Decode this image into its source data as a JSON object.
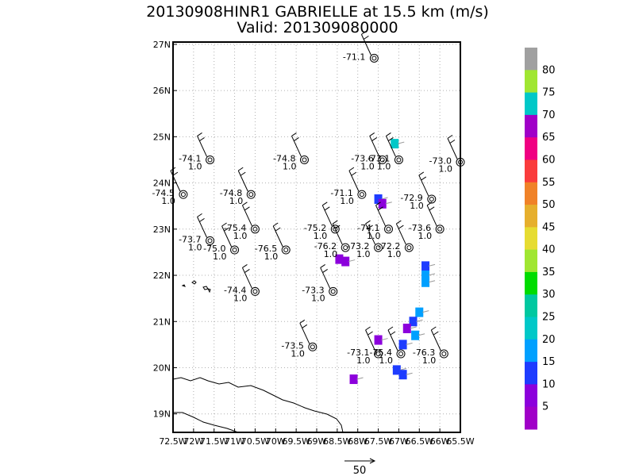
{
  "title": {
    "line1": "20130908HINR1 GABRIELLE at 15.5 km (m/s)",
    "line2": "Valid: 201309080000"
  },
  "axes": {
    "lat_labels": [
      "27N",
      "26N",
      "25N",
      "24N",
      "23N",
      "22N",
      "21N",
      "20N",
      "19N"
    ],
    "lat_values": [
      27,
      26,
      25,
      24,
      23,
      22,
      21,
      20,
      19
    ],
    "lon_labels": [
      "72.5W",
      "72W",
      "71.5W",
      "71W",
      "70.5W",
      "70W",
      "69.5W",
      "69W",
      "68.5W",
      "68W",
      "67.5W",
      "67W",
      "66.5W",
      "66W",
      "65.5W"
    ],
    "lon_values": [
      -72.5,
      -72,
      -71.5,
      -71,
      -70.5,
      -70,
      -69.5,
      -69,
      -68.5,
      -68,
      -67.5,
      -67,
      -66.5,
      -66,
      -65.5
    ],
    "lon_range": [
      -72.5,
      -65.5
    ],
    "lat_range": [
      18.6,
      27.05
    ],
    "grid": true
  },
  "stations": [
    {
      "lon": -67.6,
      "lat": 26.7,
      "temp": "-71.1",
      "val": ""
    },
    {
      "lon": -71.6,
      "lat": 24.5,
      "temp": "-74.1",
      "val": "1.0"
    },
    {
      "lon": -69.3,
      "lat": 24.5,
      "temp": "-74.8",
      "val": "1.0"
    },
    {
      "lon": -67.4,
      "lat": 24.5,
      "temp": "-73.6",
      "val": "1.0"
    },
    {
      "lon": -67.0,
      "lat": 24.5,
      "temp": "-73.1",
      "val": "1.0"
    },
    {
      "lon": -65.5,
      "lat": 24.45,
      "temp": "-73.0",
      "val": "1.0"
    },
    {
      "lon": -72.25,
      "lat": 23.75,
      "temp": "-74.5",
      "val": "1.0"
    },
    {
      "lon": -70.6,
      "lat": 23.75,
      "temp": "-74.8",
      "val": "1.0"
    },
    {
      "lon": -67.9,
      "lat": 23.75,
      "temp": "-71.1",
      "val": "1.0"
    },
    {
      "lon": -66.2,
      "lat": 23.65,
      "temp": "-72.9",
      "val": "1.0"
    },
    {
      "lon": -70.5,
      "lat": 23.0,
      "temp": "-75.4",
      "val": "1.0"
    },
    {
      "lon": -68.55,
      "lat": 23.0,
      "temp": "-75.2",
      "val": "1.0"
    },
    {
      "lon": -67.25,
      "lat": 23.0,
      "temp": "-74.1",
      "val": "1.0"
    },
    {
      "lon": -66.0,
      "lat": 23.0,
      "temp": "-73.6",
      "val": "1.0"
    },
    {
      "lon": -71.6,
      "lat": 22.75,
      "temp": "-73.7",
      "val": "1.0"
    },
    {
      "lon": -71.0,
      "lat": 22.55,
      "temp": "-75.0",
      "val": "1.0"
    },
    {
      "lon": -69.75,
      "lat": 22.55,
      "temp": "-76.5",
      "val": "1.0"
    },
    {
      "lon": -68.3,
      "lat": 22.6,
      "temp": "-76.2",
      "val": "1.0"
    },
    {
      "lon": -67.5,
      "lat": 22.6,
      "temp": "-73.2",
      "val": "1.0"
    },
    {
      "lon": -66.75,
      "lat": 22.6,
      "temp": "-72.2",
      "val": "1.0"
    },
    {
      "lon": -70.5,
      "lat": 21.65,
      "temp": "-74.4",
      "val": "1.0"
    },
    {
      "lon": -68.6,
      "lat": 21.65,
      "temp": "-73.3",
      "val": "1.0"
    },
    {
      "lon": -69.1,
      "lat": 20.45,
      "temp": "-73.5",
      "val": "1.0"
    },
    {
      "lon": -67.5,
      "lat": 20.3,
      "temp": "-73.1",
      "val": "1.0"
    },
    {
      "lon": -66.95,
      "lat": 20.3,
      "temp": "-75.4",
      "val": "1.0"
    },
    {
      "lon": -65.9,
      "lat": 20.3,
      "temp": "-76.3",
      "val": "1.0"
    }
  ],
  "wind_cells": [
    {
      "lon": -67.1,
      "lat": 24.85,
      "level": "cyan"
    },
    {
      "lon": -67.5,
      "lat": 23.65,
      "level": "blue"
    },
    {
      "lon": -67.4,
      "lat": 23.55,
      "level": "purple"
    },
    {
      "lon": -68.45,
      "lat": 22.35,
      "level": "purple"
    },
    {
      "lon": -68.3,
      "lat": 22.3,
      "level": "purple"
    },
    {
      "lon": -66.35,
      "lat": 22.2,
      "level": "blue"
    },
    {
      "lon": -66.35,
      "lat": 22.0,
      "level": "sky"
    },
    {
      "lon": -66.35,
      "lat": 21.85,
      "level": "sky"
    },
    {
      "lon": -66.5,
      "lat": 21.2,
      "level": "sky"
    },
    {
      "lon": -66.65,
      "lat": 21.0,
      "level": "blue"
    },
    {
      "lon": -66.8,
      "lat": 20.85,
      "level": "purple"
    },
    {
      "lon": -66.6,
      "lat": 20.7,
      "level": "sky"
    },
    {
      "lon": -66.9,
      "lat": 20.5,
      "level": "blue"
    },
    {
      "lon": -67.5,
      "lat": 20.6,
      "level": "purple"
    },
    {
      "lon": -67.05,
      "lat": 19.95,
      "level": "blue"
    },
    {
      "lon": -66.9,
      "lat": 19.85,
      "level": "blue"
    },
    {
      "lon": -68.1,
      "lat": 19.75,
      "level": "purple"
    }
  ],
  "colorbar": {
    "labels": [
      "80",
      "75",
      "70",
      "65",
      "60",
      "55",
      "50",
      "45",
      "40",
      "35",
      "30",
      "25",
      "20",
      "15",
      "10",
      "5"
    ],
    "colors": [
      "#a0a0a0",
      "#a0e632",
      "#00c8c8",
      "#a000c8",
      "#f00082",
      "#fa3c3c",
      "#f08228",
      "#e6af2d",
      "#e6dc32",
      "#a0e632",
      "#00dc00",
      "#00c8a0",
      "#00c8c8",
      "#00a0ff",
      "#1e3cff",
      "#8c00dc",
      "#a000c8"
    ]
  },
  "legend": {
    "vector_label": "50"
  },
  "colors": {
    "cyan": "#00c8c8",
    "blue": "#1e3cff",
    "purple": "#8c00dc",
    "sky": "#00a0ff"
  }
}
